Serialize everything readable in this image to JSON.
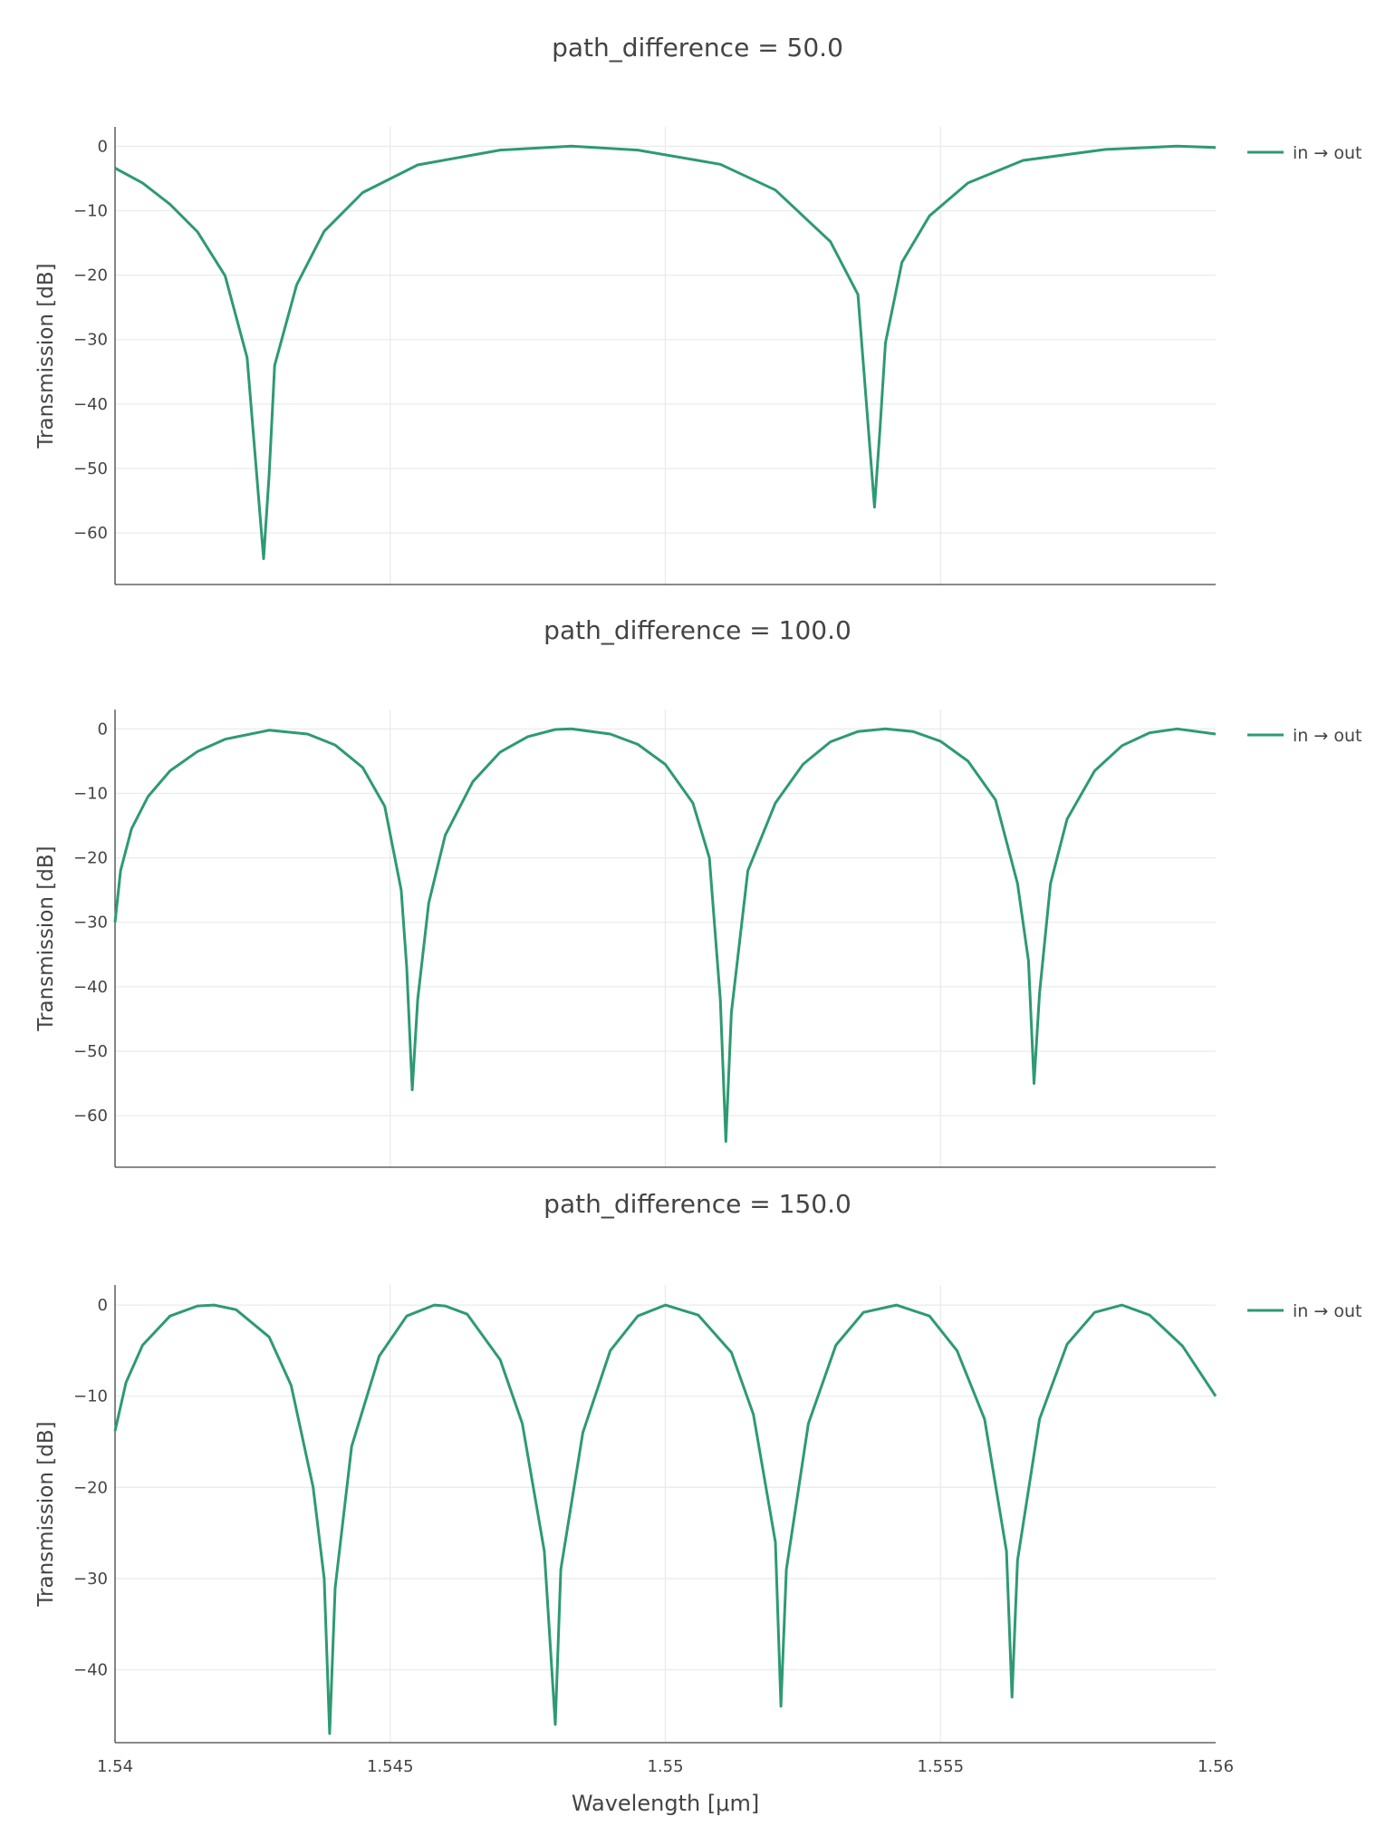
{
  "chart_data": {
    "type": "line",
    "series_color": "#2e9a72",
    "xlabel": "Wavelength [μm]",
    "ylabel": "Transmission [dB]",
    "xlim": [
      1.54,
      1.56
    ],
    "x_ticks": [
      "1.54",
      "1.545",
      "1.55",
      "1.555",
      "1.56"
    ],
    "grid": true,
    "legend_position": "top-right",
    "subplots": [
      {
        "title": "path_difference = 50.0",
        "ylim": [
          -68,
          3
        ],
        "y_ticks": [
          0,
          -10,
          -20,
          -30,
          -40,
          -50,
          -60
        ],
        "series": [
          {
            "name": "in → out",
            "x": [
              1.54,
              1.5405,
              1.541,
              1.5415,
              1.542,
              1.5424,
              1.5427,
              1.5428,
              1.5429,
              1.5433,
              1.5438,
              1.5445,
              1.5455,
              1.547,
              1.5483,
              1.5495,
              1.551,
              1.552,
              1.553,
              1.5535,
              1.5538,
              1.5539,
              1.554,
              1.5543,
              1.5548,
              1.5555,
              1.5565,
              1.558,
              1.5593,
              1.56
            ],
            "y": [
              -3.4,
              -5.7,
              -9.0,
              -13.3,
              -20.1,
              -32.8,
              -64.0,
              -51.0,
              -34.0,
              -21.5,
              -13.2,
              -7.2,
              -2.9,
              -0.6,
              0.0,
              -0.6,
              -2.8,
              -6.8,
              -14.8,
              -23.0,
              -56.0,
              -44.0,
              -30.5,
              -18.0,
              -10.8,
              -5.7,
              -2.2,
              -0.5,
              0.0,
              -0.2
            ]
          }
        ]
      },
      {
        "title": "path_difference = 100.0",
        "ylim": [
          -68,
          3
        ],
        "y_ticks": [
          0,
          -10,
          -20,
          -30,
          -40,
          -50,
          -60
        ],
        "series": [
          {
            "name": "in → out",
            "x": [
              1.54,
              1.5401,
              1.5403,
              1.5406,
              1.541,
              1.5415,
              1.542,
              1.5428,
              1.5435,
              1.544,
              1.5445,
              1.5449,
              1.5452,
              1.5453,
              1.5454,
              1.5455,
              1.5457,
              1.546,
              1.5465,
              1.547,
              1.5475,
              1.548,
              1.5483,
              1.549,
              1.5495,
              1.55,
              1.5505,
              1.5508,
              1.551,
              1.5511,
              1.5512,
              1.5515,
              1.552,
              1.5525,
              1.553,
              1.5535,
              1.554,
              1.5545,
              1.555,
              1.5555,
              1.556,
              1.5564,
              1.5566,
              1.5567,
              1.5568,
              1.557,
              1.5573,
              1.5578,
              1.5583,
              1.5588,
              1.5593,
              1.56
            ],
            "y": [
              -30.0,
              -22.0,
              -15.5,
              -10.5,
              -6.5,
              -3.5,
              -1.6,
              -0.2,
              -0.8,
              -2.5,
              -6.0,
              -12.0,
              -25.0,
              -37.0,
              -56.0,
              -42.0,
              -27.0,
              -16.5,
              -8.2,
              -3.6,
              -1.2,
              -0.1,
              0.0,
              -0.8,
              -2.4,
              -5.5,
              -11.5,
              -20.0,
              -42.0,
              -64.0,
              -44.0,
              -22.0,
              -11.5,
              -5.5,
              -2.0,
              -0.4,
              0.0,
              -0.4,
              -1.9,
              -5.0,
              -11.0,
              -24.0,
              -36.0,
              -55.0,
              -41.0,
              -24.0,
              -14.0,
              -6.5,
              -2.6,
              -0.6,
              0.0,
              -0.8
            ]
          }
        ]
      },
      {
        "title": "path_difference = 150.0",
        "ylim": [
          -48,
          2.2
        ],
        "y_ticks": [
          0,
          -10,
          -20,
          -30,
          -40
        ],
        "series": [
          {
            "name": "in → out",
            "x": [
              1.54,
              1.5402,
              1.5405,
              1.541,
              1.5415,
              1.5418,
              1.5422,
              1.5428,
              1.5432,
              1.5436,
              1.5438,
              1.5439,
              1.544,
              1.5443,
              1.5448,
              1.5453,
              1.5458,
              1.546,
              1.5464,
              1.547,
              1.5474,
              1.5478,
              1.548,
              1.5481,
              1.5485,
              1.549,
              1.5495,
              1.55,
              1.5506,
              1.5512,
              1.5516,
              1.552,
              1.5521,
              1.5522,
              1.5526,
              1.5531,
              1.5536,
              1.5542,
              1.5548,
              1.5553,
              1.5558,
              1.5562,
              1.5563,
              1.5564,
              1.5568,
              1.5573,
              1.5578,
              1.5583,
              1.5588,
              1.5594,
              1.56
            ],
            "y": [
              -13.8,
              -8.5,
              -4.4,
              -1.2,
              -0.1,
              0.0,
              -0.5,
              -3.5,
              -8.8,
              -20.0,
              -30.0,
              -47.0,
              -31.0,
              -15.5,
              -5.6,
              -1.2,
              0.0,
              -0.1,
              -1.0,
              -6.0,
              -13.0,
              -27.0,
              -46.0,
              -29.0,
              -14.0,
              -5.0,
              -1.2,
              0.0,
              -1.1,
              -5.2,
              -12.0,
              -26.0,
              -44.0,
              -29.0,
              -13.0,
              -4.4,
              -0.8,
              0.0,
              -1.2,
              -5.0,
              -12.5,
              -27.0,
              -43.0,
              -28.0,
              -12.5,
              -4.3,
              -0.8,
              0.0,
              -1.1,
              -4.5,
              -10.0
            ]
          }
        ]
      }
    ]
  }
}
